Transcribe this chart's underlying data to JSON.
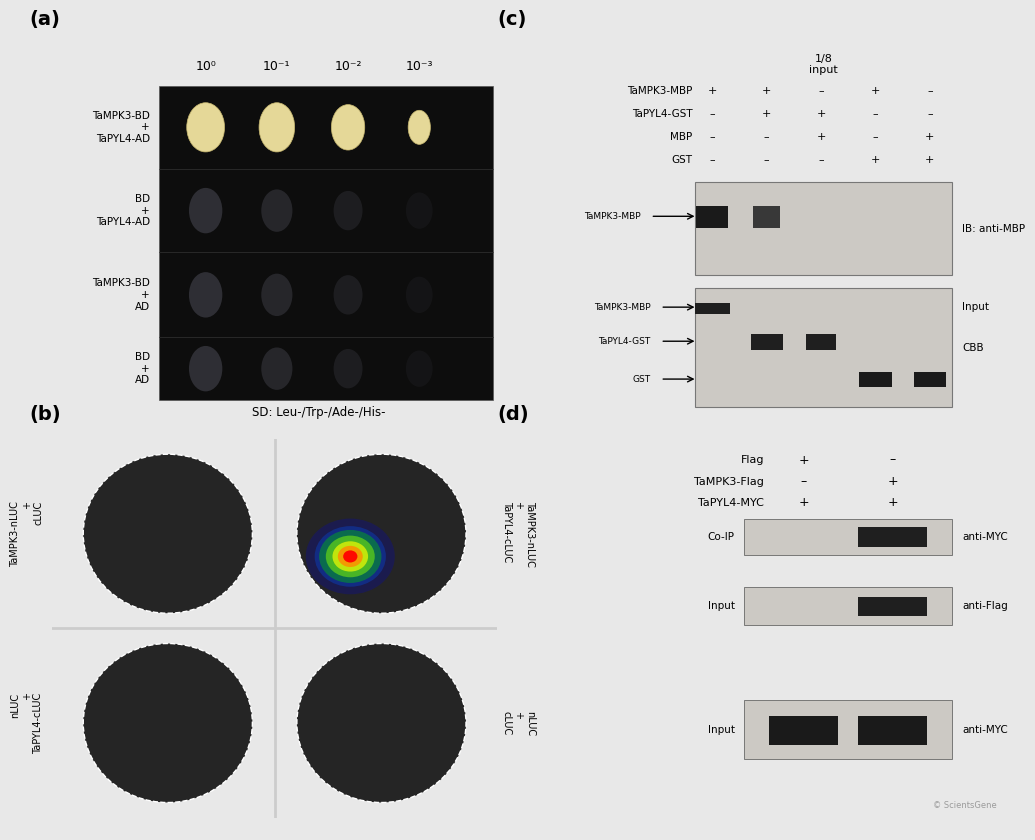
{
  "figure_bg": "#e8e8e8",
  "panel_a": {
    "label": "(a)",
    "title_x_labels": [
      "10⁰",
      "10⁻¹",
      "10⁻²",
      "10⁻³"
    ],
    "row_labels": [
      "TaMPK3-BD\n+\nTaPYL4-AD",
      "BD\n+\nTaPYL4-AD",
      "TaMPK3-BD\n+\nAD",
      "BD\n+\nAD"
    ],
    "caption": "SD: Leu-/Trp-/Ade-/His-"
  },
  "panel_b": {
    "label": "(b)",
    "row_labels_left": [
      "TaMPK3-nLUC\n+\ncLUC",
      "nLUC\n+\nTaPYL4-cLUC"
    ],
    "col_labels_right": [
      "TaMPK3-nLUC\n+\nTaPYL4-cLUC",
      "nLUC\n+\ncLUC"
    ]
  },
  "panel_c": {
    "label": "(c)",
    "rows": [
      {
        "name": "TaMPK3-MBP",
        "values": [
          "+",
          "+",
          "–",
          "+",
          "–"
        ]
      },
      {
        "name": "TaPYL4-GST",
        "values": [
          "–",
          "+",
          "+",
          "–",
          "–"
        ]
      },
      {
        "name": "MBP",
        "values": [
          "–",
          "–",
          "+",
          "–",
          "+"
        ]
      },
      {
        "name": "GST",
        "values": [
          "–",
          "–",
          "–",
          "+",
          "+"
        ]
      }
    ],
    "blot1_label_right": "IB: anti-MBP",
    "blot1_band_label": "TaMPK3-MBP",
    "blot2_label_right1": "Input",
    "blot2_label_right2": "CBB",
    "blot2_band_labels": [
      "TaMPK3-MBP",
      "TaPYL4-GST",
      "GST"
    ]
  },
  "panel_d": {
    "label": "(d)",
    "rows": [
      {
        "name": "Flag",
        "values": [
          "+",
          "–"
        ]
      },
      {
        "name": "TaMPK3-Flag",
        "values": [
          "–",
          "+"
        ]
      },
      {
        "name": "TaPYL4-MYC",
        "values": [
          "+",
          "+"
        ]
      }
    ],
    "blot_labels": [
      {
        "left": "Co-IP",
        "right": "anti-MYC"
      },
      {
        "left": "Input",
        "right": "anti-Flag"
      },
      {
        "left": "Input",
        "right": "anti-MYC"
      }
    ]
  },
  "watermark": "© ScientsGene"
}
